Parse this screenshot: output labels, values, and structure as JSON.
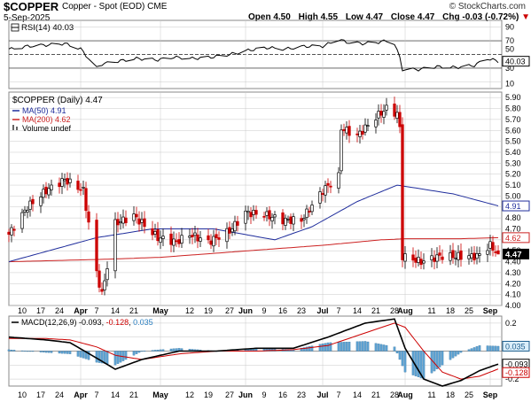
{
  "header": {
    "ticker": "$COPPER",
    "subtitle": "Copper - Spot (EOD)  CME",
    "date": "5-Sep-2025",
    "source": "© StockCharts.com",
    "open_label": "Open",
    "open": "4.50",
    "high_label": "High",
    "high": "4.55",
    "low_label": "Low",
    "low": "4.47",
    "close_label": "Close",
    "close": "4.47",
    "chg_label": "Chg",
    "chg": "-0.03 (-0.72%)"
  },
  "colors": {
    "up": "#000000",
    "down": "#cc0000",
    "ma50": "#1f2d9c",
    "ma200": "#cc2222",
    "rsi": "#000000",
    "macd": "#000000",
    "signal": "#cc0000",
    "histogram": "#5fa3d3",
    "grid": "#c8c8c8"
  },
  "rsi_panel": {
    "legend": "RSI(14) 40.03",
    "ticks": [
      "90",
      "70",
      "50",
      "30",
      "10"
    ],
    "last_label": "40.03"
  },
  "price_panel": {
    "legend_title": "$COPPER (Daily) 4.47",
    "legend_ma50": "MA(50) 4.91",
    "legend_ma200": "MA(200) 4.62",
    "legend_volume": "Volume undef",
    "ticks": [
      "5.90",
      "5.80",
      "5.70",
      "5.60",
      "5.50",
      "5.40",
      "5.30",
      "5.20",
      "5.10",
      "5.00",
      "4.90",
      "4.80",
      "4.70",
      "4.60",
      "4.50",
      "4.40",
      "4.30",
      "4.20",
      "4.10",
      "4.00"
    ],
    "label_ma50": "4.91",
    "label_ma200": "4.62",
    "label_close": "4.47"
  },
  "macd_panel": {
    "legend": "MACD(12,26,9) -0.093, -0.128, 0.035",
    "legend_parts": [
      "MACD(12,26,9)",
      "-0.093",
      ", ",
      "-0.128",
      ", ",
      "0.035"
    ],
    "ticks": [
      "0.2",
      "0.1",
      "0.0",
      "-0.1",
      "-0.2"
    ],
    "label_hist": "0.035",
    "label_macd": "-0.093",
    "label_signal": "-0.128"
  },
  "x_axis": {
    "labels": [
      "10",
      "17",
      "24",
      "Apr",
      "7",
      "14",
      "21",
      "May",
      "12",
      "19",
      "27",
      "Jun",
      "9",
      "16",
      "23",
      "Jul",
      "7",
      "14",
      "21",
      "28",
      "Aug",
      "11",
      "18",
      "25",
      "Sep"
    ]
  },
  "chart_data": [
    {
      "type": "line",
      "name": "RSI(14)",
      "x": [
        "Mar 6",
        "Mar 12",
        "Mar 20",
        "Mar 26",
        "Apr 1",
        "Apr 7",
        "Apr 9",
        "Apr 15",
        "Apr 22",
        "Apr 30",
        "May 6",
        "May 13",
        "May 20",
        "May 27",
        "Jun 3",
        "Jun 10",
        "Jun 17",
        "Jun 24",
        "Jul 1",
        "Jul 7",
        "Jul 10",
        "Jul 16",
        "Jul 22",
        "Jul 25",
        "Jul 28",
        "Jul 30",
        "Jul 31",
        "Aug 6",
        "Aug 13",
        "Aug 20",
        "Aug 27",
        "Sep 1",
        "Sep 5"
      ],
      "y": [
        58,
        62,
        64,
        66,
        58,
        30,
        36,
        40,
        44,
        42,
        46,
        44,
        46,
        50,
        56,
        60,
        58,
        62,
        62,
        72,
        68,
        66,
        68,
        70,
        66,
        45,
        28,
        28,
        32,
        31,
        34,
        44,
        40.03
      ],
      "ylim": [
        0,
        100
      ],
      "reference_lines": [
        70,
        50,
        30
      ]
    },
    {
      "type": "candlestick",
      "name": "$COPPER (Daily)",
      "x_range": [
        "Mar 5, 2025",
        "Sep 5, 2025"
      ],
      "last": {
        "open": 4.5,
        "high": 4.55,
        "low": 4.47,
        "close": 4.47
      },
      "close_path": {
        "x": [
          "Mar 5",
          "Mar 12",
          "Mar 19",
          "Mar 26",
          "Apr 2",
          "Apr 7",
          "Apr 9",
          "Apr 14",
          "Apr 21",
          "Apr 30",
          "May 7",
          "May 12",
          "May 19",
          "May 27",
          "Jun 2",
          "Jun 9",
          "Jun 16",
          "Jun 23",
          "Jul 1",
          "Jul 7",
          "Jul 8",
          "Jul 14",
          "Jul 21",
          "Jul 25",
          "Jul 29",
          "Jul 30",
          "Jul 31",
          "Aug 7",
          "Aug 14",
          "Aug 21",
          "Aug 28",
          "Sep 2",
          "Sep 5"
        ],
        "y": [
          4.65,
          4.9,
          5.05,
          5.15,
          5.05,
          4.3,
          4.1,
          4.75,
          4.82,
          4.62,
          4.58,
          4.65,
          4.58,
          4.68,
          4.85,
          4.83,
          4.78,
          4.78,
          5.05,
          5.18,
          5.62,
          5.55,
          5.72,
          5.8,
          5.75,
          5.62,
          4.45,
          4.4,
          4.45,
          4.45,
          4.45,
          4.55,
          4.47
        ]
      },
      "ma50": {
        "x": [
          "Mar 5",
          "Apr 7",
          "Apr 28",
          "May 21",
          "Jun 13",
          "Jun 27",
          "Jul 14",
          "Jul 29",
          "Aug 19",
          "Sep 5"
        ],
        "y": [
          4.4,
          4.62,
          4.7,
          4.7,
          4.6,
          4.72,
          4.95,
          5.1,
          5.02,
          4.91
        ]
      },
      "ma200": {
        "x": [
          "Mar 5",
          "Apr 7",
          "May 1",
          "Jun 3",
          "Jul 1",
          "Jul 23",
          "Aug 1",
          "Aug 22",
          "Sep 5"
        ],
        "y": [
          4.4,
          4.42,
          4.44,
          4.5,
          4.55,
          4.6,
          4.61,
          4.61,
          4.62
        ]
      },
      "ylim": [
        4.0,
        5.95
      ]
    },
    {
      "type": "line",
      "name": "MACD(12,26,9)",
      "x": [
        "Mar 5",
        "Mar 19",
        "Mar 28",
        "Apr 7",
        "Apr 14",
        "Apr 24",
        "May 8",
        "May 22",
        "Jun 6",
        "Jun 20",
        "Jul 3",
        "Jul 17",
        "Jul 28",
        "Aug 1",
        "Aug 8",
        "Aug 15",
        "Aug 22",
        "Aug 29",
        "Sep 5"
      ],
      "series": [
        {
          "name": "MACD",
          "values": [
            0.1,
            0.08,
            0.06,
            -0.05,
            -0.13,
            -0.06,
            0.0,
            0.0,
            0.02,
            0.02,
            0.1,
            0.2,
            0.23,
            0.02,
            -0.2,
            -0.25,
            -0.21,
            -0.14,
            -0.093
          ]
        },
        {
          "name": "Signal",
          "values": [
            0.09,
            0.09,
            0.08,
            0.03,
            -0.03,
            -0.06,
            -0.02,
            0.0,
            0.0,
            0.01,
            0.04,
            0.13,
            0.2,
            0.17,
            0.0,
            -0.15,
            -0.2,
            -0.18,
            -0.128
          ]
        },
        {
          "name": "Histogram",
          "values": [
            0.01,
            -0.01,
            -0.02,
            -0.08,
            -0.1,
            0.0,
            0.02,
            0.0,
            0.02,
            0.01,
            0.06,
            0.07,
            0.03,
            -0.15,
            -0.2,
            -0.1,
            -0.01,
            0.04,
            0.035
          ]
        }
      ],
      "ylim": [
        -0.25,
        0.25
      ]
    }
  ]
}
